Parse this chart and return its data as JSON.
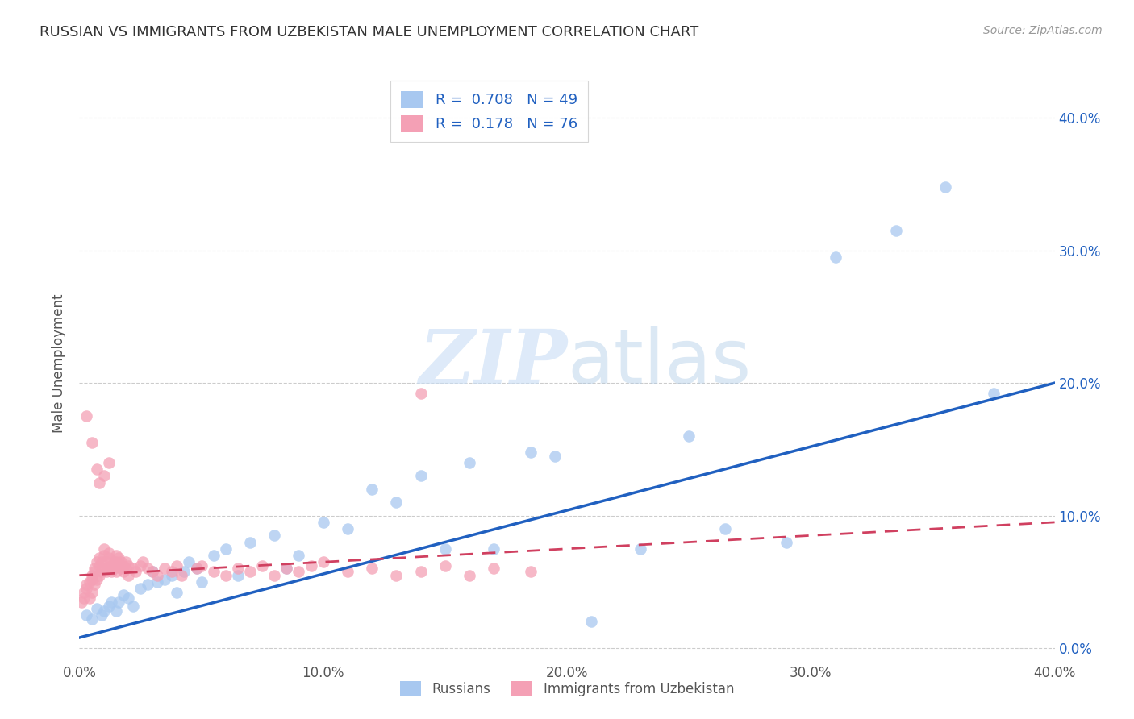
{
  "title": "RUSSIAN VS IMMIGRANTS FROM UZBEKISTAN MALE UNEMPLOYMENT CORRELATION CHART",
  "source": "Source: ZipAtlas.com",
  "ylabel": "Male Unemployment",
  "watermark_zip": "ZIP",
  "watermark_atlas": "atlas",
  "legend_russian_R": "0.708",
  "legend_russian_N": "49",
  "legend_uzbek_R": "0.178",
  "legend_uzbek_N": "76",
  "russian_color": "#a8c8f0",
  "uzbek_color": "#f4a0b5",
  "russian_line_color": "#2060c0",
  "uzbek_line_color": "#d04060",
  "xlim": [
    0.0,
    0.4
  ],
  "ylim": [
    -0.01,
    0.44
  ],
  "yticks": [
    0.0,
    0.1,
    0.2,
    0.3,
    0.4
  ],
  "xticks": [
    0.0,
    0.1,
    0.2,
    0.3,
    0.4
  ],
  "russians_x": [
    0.003,
    0.005,
    0.007,
    0.009,
    0.01,
    0.012,
    0.013,
    0.015,
    0.016,
    0.018,
    0.02,
    0.022,
    0.025,
    0.028,
    0.03,
    0.032,
    0.035,
    0.038,
    0.04,
    0.043,
    0.045,
    0.048,
    0.05,
    0.055,
    0.06,
    0.065,
    0.07,
    0.08,
    0.085,
    0.09,
    0.1,
    0.11,
    0.12,
    0.13,
    0.14,
    0.15,
    0.16,
    0.17,
    0.185,
    0.195,
    0.21,
    0.23,
    0.25,
    0.265,
    0.29,
    0.31,
    0.335,
    0.355,
    0.375
  ],
  "russians_y": [
    0.025,
    0.022,
    0.03,
    0.025,
    0.028,
    0.032,
    0.035,
    0.028,
    0.035,
    0.04,
    0.038,
    0.032,
    0.045,
    0.048,
    0.058,
    0.05,
    0.052,
    0.055,
    0.042,
    0.058,
    0.065,
    0.06,
    0.05,
    0.07,
    0.075,
    0.055,
    0.08,
    0.085,
    0.06,
    0.07,
    0.095,
    0.09,
    0.12,
    0.11,
    0.13,
    0.075,
    0.14,
    0.075,
    0.148,
    0.145,
    0.02,
    0.075,
    0.16,
    0.09,
    0.08,
    0.295,
    0.315,
    0.348,
    0.192
  ],
  "uzbeks_x": [
    0.001,
    0.002,
    0.002,
    0.003,
    0.003,
    0.004,
    0.004,
    0.005,
    0.005,
    0.005,
    0.006,
    0.006,
    0.006,
    0.007,
    0.007,
    0.008,
    0.008,
    0.008,
    0.009,
    0.009,
    0.01,
    0.01,
    0.01,
    0.011,
    0.011,
    0.012,
    0.012,
    0.012,
    0.013,
    0.013,
    0.014,
    0.014,
    0.015,
    0.015,
    0.015,
    0.016,
    0.016,
    0.017,
    0.017,
    0.018,
    0.018,
    0.019,
    0.019,
    0.02,
    0.02,
    0.022,
    0.023,
    0.025,
    0.026,
    0.028,
    0.03,
    0.032,
    0.035,
    0.038,
    0.04,
    0.042,
    0.048,
    0.05,
    0.055,
    0.06,
    0.065,
    0.07,
    0.075,
    0.08,
    0.085,
    0.09,
    0.095,
    0.1,
    0.11,
    0.12,
    0.13,
    0.14,
    0.15,
    0.16,
    0.17,
    0.185
  ],
  "uzbeks_y": [
    0.035,
    0.038,
    0.042,
    0.045,
    0.048,
    0.038,
    0.05,
    0.042,
    0.052,
    0.055,
    0.048,
    0.058,
    0.06,
    0.052,
    0.065,
    0.055,
    0.062,
    0.068,
    0.058,
    0.065,
    0.06,
    0.07,
    0.075,
    0.058,
    0.065,
    0.06,
    0.068,
    0.072,
    0.062,
    0.058,
    0.065,
    0.06,
    0.058,
    0.065,
    0.07,
    0.062,
    0.068,
    0.06,
    0.065,
    0.058,
    0.062,
    0.065,
    0.06,
    0.055,
    0.062,
    0.06,
    0.058,
    0.062,
    0.065,
    0.06,
    0.058,
    0.055,
    0.06,
    0.058,
    0.062,
    0.055,
    0.06,
    0.062,
    0.058,
    0.055,
    0.06,
    0.058,
    0.062,
    0.055,
    0.06,
    0.058,
    0.062,
    0.065,
    0.058,
    0.06,
    0.055,
    0.058,
    0.062,
    0.055,
    0.06,
    0.058
  ],
  "uzbeks_outlier_x": [
    0.003,
    0.005,
    0.007,
    0.008,
    0.01,
    0.012,
    0.14
  ],
  "uzbeks_outlier_y": [
    0.175,
    0.155,
    0.135,
    0.125,
    0.13,
    0.14,
    0.192
  ]
}
